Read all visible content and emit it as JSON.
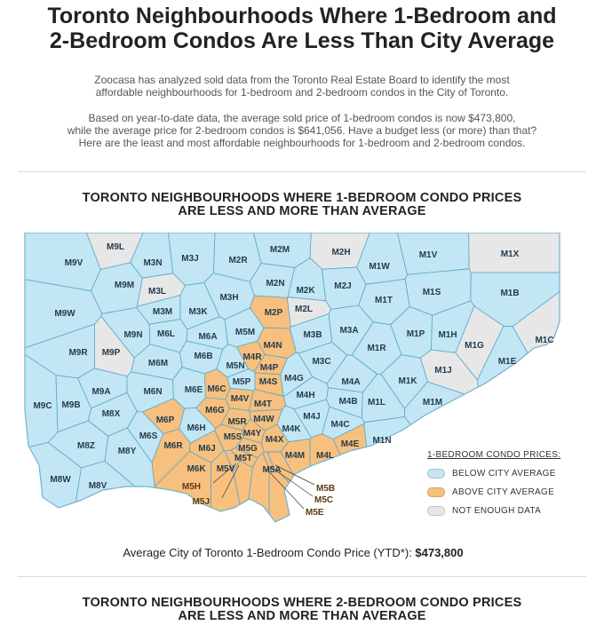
{
  "header": {
    "title_line1": "Toronto Neighbourhoods Where 1-Bedroom and",
    "title_line2": "2-Bedroom Condos Are Less Than City Average"
  },
  "intro": {
    "p1_line1": "Zoocasa has analyzed sold data from the Toronto Real Estate Board to identify the most",
    "p1_line2": "affordable neighbourhoods for 1-bedroom and 2-bedroom condos in the City of Toronto.",
    "p2_line1": "Based on year-to-date data, the average sold price of 1-bedroom condos is now $473,800,",
    "p2_line2": "while the average price for 2-bedroom condos is $641,056. Have a budget less (or more) than that?",
    "p2_line3": "Here are the least and most affordable neighbourhoods for 1-bedroom and 2-bedroom condos."
  },
  "section1": {
    "title_pre": "TORONTO NEIGHBOURHOODS WHERE ",
    "title_bold": "1-BEDROOM CONDO",
    "title_post": " PRICES",
    "title_line2": "ARE LESS AND MORE THAN AVERAGE"
  },
  "legend": {
    "title": "1-BEDROOM CONDO PRICES:",
    "below": "BELOW CITY AVERAGE",
    "above": "ABOVE CITY AVERAGE",
    "none": "NOT ENOUGH DATA"
  },
  "colors": {
    "below": "#c2e6f4",
    "above": "#f7c07e",
    "none": "#e7e7e7",
    "border": "#5aa7c8"
  },
  "average": {
    "label": "Average City of Toronto 1-Bedroom Condo Price (YTD*):",
    "value": "$473,800"
  },
  "section2": {
    "title_pre": "TORONTO NEIGHBOURHOODS WHERE ",
    "title_bold": "2-BEDROOM CONDO",
    "title_post": " PRICES",
    "title_line2": "ARE LESS AND MORE THAN AVERAGE"
  },
  "map": {
    "neighbourhoods": [
      {
        "code": "M9L",
        "status": "none"
      },
      {
        "code": "M9V",
        "status": "below"
      },
      {
        "code": "M3N",
        "status": "below"
      },
      {
        "code": "M3J",
        "status": "below"
      },
      {
        "code": "M2R",
        "status": "below"
      },
      {
        "code": "M2M",
        "status": "below"
      },
      {
        "code": "M2H",
        "status": "none"
      },
      {
        "code": "M1W",
        "status": "below"
      },
      {
        "code": "M1V",
        "status": "below"
      },
      {
        "code": "M1X",
        "status": "none"
      },
      {
        "code": "M9M",
        "status": "below"
      },
      {
        "code": "M3L",
        "status": "none"
      },
      {
        "code": "M2N",
        "status": "below"
      },
      {
        "code": "M2K",
        "status": "below"
      },
      {
        "code": "M2J",
        "status": "below"
      },
      {
        "code": "M1S",
        "status": "below"
      },
      {
        "code": "M1B",
        "status": "below"
      },
      {
        "code": "M3H",
        "status": "below"
      },
      {
        "code": "M1T",
        "status": "below"
      },
      {
        "code": "M9W",
        "status": "below"
      },
      {
        "code": "M3M",
        "status": "below"
      },
      {
        "code": "M3K",
        "status": "below"
      },
      {
        "code": "M2P",
        "status": "above"
      },
      {
        "code": "M2L",
        "status": "none"
      },
      {
        "code": "M5M",
        "status": "below"
      },
      {
        "code": "M3B",
        "status": "below"
      },
      {
        "code": "M3A",
        "status": "below"
      },
      {
        "code": "M1P",
        "status": "below"
      },
      {
        "code": "M1H",
        "status": "below"
      },
      {
        "code": "M9N",
        "status": "below"
      },
      {
        "code": "M6L",
        "status": "below"
      },
      {
        "code": "M6A",
        "status": "below"
      },
      {
        "code": "M4N",
        "status": "above"
      },
      {
        "code": "M1R",
        "status": "below"
      },
      {
        "code": "M1G",
        "status": "none"
      },
      {
        "code": "M1C",
        "status": "none"
      },
      {
        "code": "M9R",
        "status": "below"
      },
      {
        "code": "M9P",
        "status": "none"
      },
      {
        "code": "M6B",
        "status": "below"
      },
      {
        "code": "M4R",
        "status": "above"
      },
      {
        "code": "M3C",
        "status": "below"
      },
      {
        "code": "M6M",
        "status": "below"
      },
      {
        "code": "M5N",
        "status": "below"
      },
      {
        "code": "M4P",
        "status": "above"
      },
      {
        "code": "M1J",
        "status": "none"
      },
      {
        "code": "M1E",
        "status": "below"
      },
      {
        "code": "M5P",
        "status": "below"
      },
      {
        "code": "M4S",
        "status": "above"
      },
      {
        "code": "M4G",
        "status": "below"
      },
      {
        "code": "M4A",
        "status": "below"
      },
      {
        "code": "M1K",
        "status": "below"
      },
      {
        "code": "M9A",
        "status": "below"
      },
      {
        "code": "M6N",
        "status": "below"
      },
      {
        "code": "M6E",
        "status": "below"
      },
      {
        "code": "M6C",
        "status": "above"
      },
      {
        "code": "M4V",
        "status": "above"
      },
      {
        "code": "M4H",
        "status": "below"
      },
      {
        "code": "M9C",
        "status": "below"
      },
      {
        "code": "M9B",
        "status": "below"
      },
      {
        "code": "M4T",
        "status": "above"
      },
      {
        "code": "M4B",
        "status": "below"
      },
      {
        "code": "M1L",
        "status": "below"
      },
      {
        "code": "M6G",
        "status": "above"
      },
      {
        "code": "M4J",
        "status": "below"
      },
      {
        "code": "M1M",
        "status": "below"
      },
      {
        "code": "M8X",
        "status": "below"
      },
      {
        "code": "M6P",
        "status": "above"
      },
      {
        "code": "M5R",
        "status": "above"
      },
      {
        "code": "M4W",
        "status": "above"
      },
      {
        "code": "M4C",
        "status": "below"
      },
      {
        "code": "M6H",
        "status": "below"
      },
      {
        "code": "M6S",
        "status": "below"
      },
      {
        "code": "M4Y",
        "status": "above"
      },
      {
        "code": "M4K",
        "status": "below"
      },
      {
        "code": "M5S",
        "status": "above"
      },
      {
        "code": "M4X",
        "status": "above"
      },
      {
        "code": "M4E",
        "status": "above"
      },
      {
        "code": "M1N",
        "status": "below"
      },
      {
        "code": "M8Z",
        "status": "below"
      },
      {
        "code": "M6R",
        "status": "above"
      },
      {
        "code": "M6J",
        "status": "above"
      },
      {
        "code": "M5G",
        "status": "above"
      },
      {
        "code": "M8Y",
        "status": "below"
      },
      {
        "code": "M5T",
        "status": "above"
      },
      {
        "code": "M4M",
        "status": "above"
      },
      {
        "code": "M4L",
        "status": "above"
      },
      {
        "code": "M6K",
        "status": "above"
      },
      {
        "code": "M5V",
        "status": "above"
      },
      {
        "code": "M5A",
        "status": "above"
      },
      {
        "code": "M8W",
        "status": "below"
      },
      {
        "code": "M8V",
        "status": "below"
      },
      {
        "code": "M5H",
        "status": "above"
      },
      {
        "code": "M5J",
        "status": "above"
      },
      {
        "code": "M5B",
        "status": "above"
      },
      {
        "code": "M5C",
        "status": "above"
      },
      {
        "code": "M5E",
        "status": "above"
      }
    ]
  }
}
